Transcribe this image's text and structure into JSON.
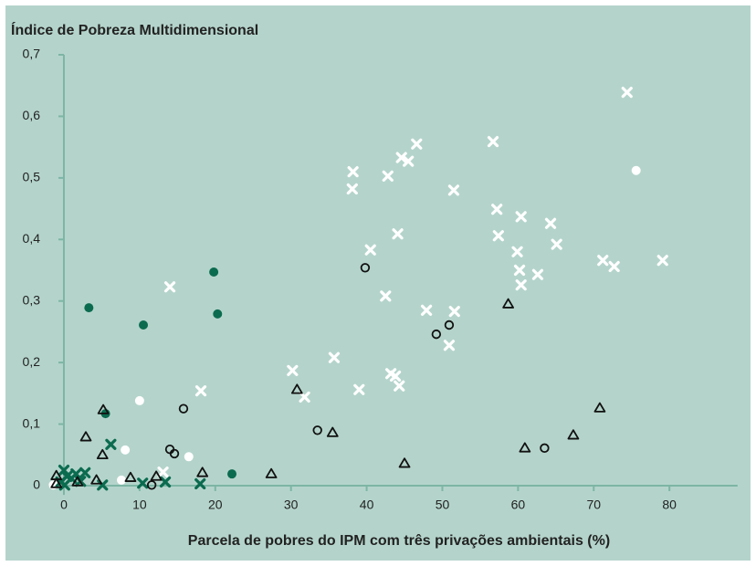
{
  "chart_data": {
    "type": "scatter",
    "title": "Índice de Pobreza Multidimensional",
    "x_label": "Parcela de pobres do IPM com três privações ambientais (%)",
    "xlim": [
      -2,
      89
    ],
    "ylim": [
      -0.015,
      0.7
    ],
    "xticks": [
      0,
      10,
      20,
      30,
      40,
      50,
      60,
      70,
      80
    ],
    "yticks": [
      0,
      {
        "value": 0.1,
        "label": "0,1"
      },
      {
        "value": 0.2,
        "label": "0,2"
      },
      {
        "value": 0.3,
        "label": "0,3"
      },
      {
        "value": 0.4,
        "label": "0,4"
      },
      {
        "value": 0.5,
        "label": "0,5"
      },
      {
        "value": 0.6,
        "label": "0,6"
      },
      {
        "value": 0.7,
        "label": "0,7"
      }
    ],
    "series": [
      {
        "color": "#ffffff",
        "marker": "x",
        "x": [
          74.4,
          56.7,
          46.6,
          44.6,
          45.5,
          42.8,
          38.2,
          38.1,
          51.5,
          57.2,
          60.4,
          64.3,
          57.4,
          44.1,
          65.1,
          59.9,
          40.5,
          71.2,
          79.1,
          72.7,
          60.2,
          62.6,
          60.4,
          14.0,
          42.5,
          47.9,
          51.6,
          50.9,
          35.7,
          30.2,
          31.8,
          39.0,
          43.2,
          43.8,
          44.3,
          18.1,
          13.1
        ],
        "values": [
          0.639,
          0.559,
          0.555,
          0.533,
          0.527,
          0.503,
          0.51,
          0.482,
          0.48,
          0.449,
          0.437,
          0.426,
          0.406,
          0.409,
          0.392,
          0.38,
          0.383,
          0.366,
          0.366,
          0.356,
          0.35,
          0.343,
          0.326,
          0.323,
          0.308,
          0.285,
          0.283,
          0.228,
          0.208,
          0.187,
          0.144,
          0.156,
          0.182,
          0.178,
          0.162,
          0.154,
          0.022
        ]
      },
      {
        "color": "#ffffff",
        "marker": "dot",
        "x": [
          75.6,
          10.0,
          8.1,
          16.5,
          7.6,
          -1.4
        ],
        "values": [
          0.512,
          0.138,
          0.058,
          0.047,
          0.009,
          0.001
        ]
      },
      {
        "color": "#0b6b4f",
        "marker": "dot",
        "x": [
          19.8,
          3.3,
          10.5,
          20.3,
          5.5,
          22.2
        ],
        "values": [
          0.347,
          0.289,
          0.261,
          0.279,
          0.117,
          0.019
        ]
      },
      {
        "color": "#0b6b4f",
        "marker": "x",
        "x": [
          6.2,
          5.1,
          10.4,
          13.4,
          18.0,
          0,
          0.4,
          1.6,
          2.8,
          1.0,
          -0.4,
          2.2,
          0.1
        ],
        "values": [
          0.067,
          0.001,
          0.004,
          0.006,
          0.003,
          0.025,
          0.015,
          0.019,
          0.021,
          0.012,
          0.006,
          0.007,
          0.001
        ]
      },
      {
        "color": "#111111",
        "marker": "circle",
        "x": [
          39.8,
          50.9,
          49.2,
          15.8,
          33.5,
          14.0,
          14.6,
          63.5,
          11.6
        ],
        "values": [
          0.354,
          0.261,
          0.246,
          0.125,
          0.09,
          0.059,
          0.052,
          0.061,
          0.001
        ]
      },
      {
        "color": "#111111",
        "marker": "triangle",
        "x": [
          58.7,
          30.8,
          70.8,
          5.2,
          2.9,
          35.5,
          67.3,
          60.9,
          5.1,
          45.0,
          18.3,
          27.4,
          8.8,
          12.2,
          4.3,
          1.8,
          -1.0,
          -1.0
        ],
        "values": [
          0.295,
          0.156,
          0.126,
          0.123,
          0.079,
          0.086,
          0.082,
          0.061,
          0.05,
          0.036,
          0.021,
          0.019,
          0.013,
          0.015,
          0.009,
          0.006,
          0.016,
          0.003
        ]
      }
    ]
  }
}
